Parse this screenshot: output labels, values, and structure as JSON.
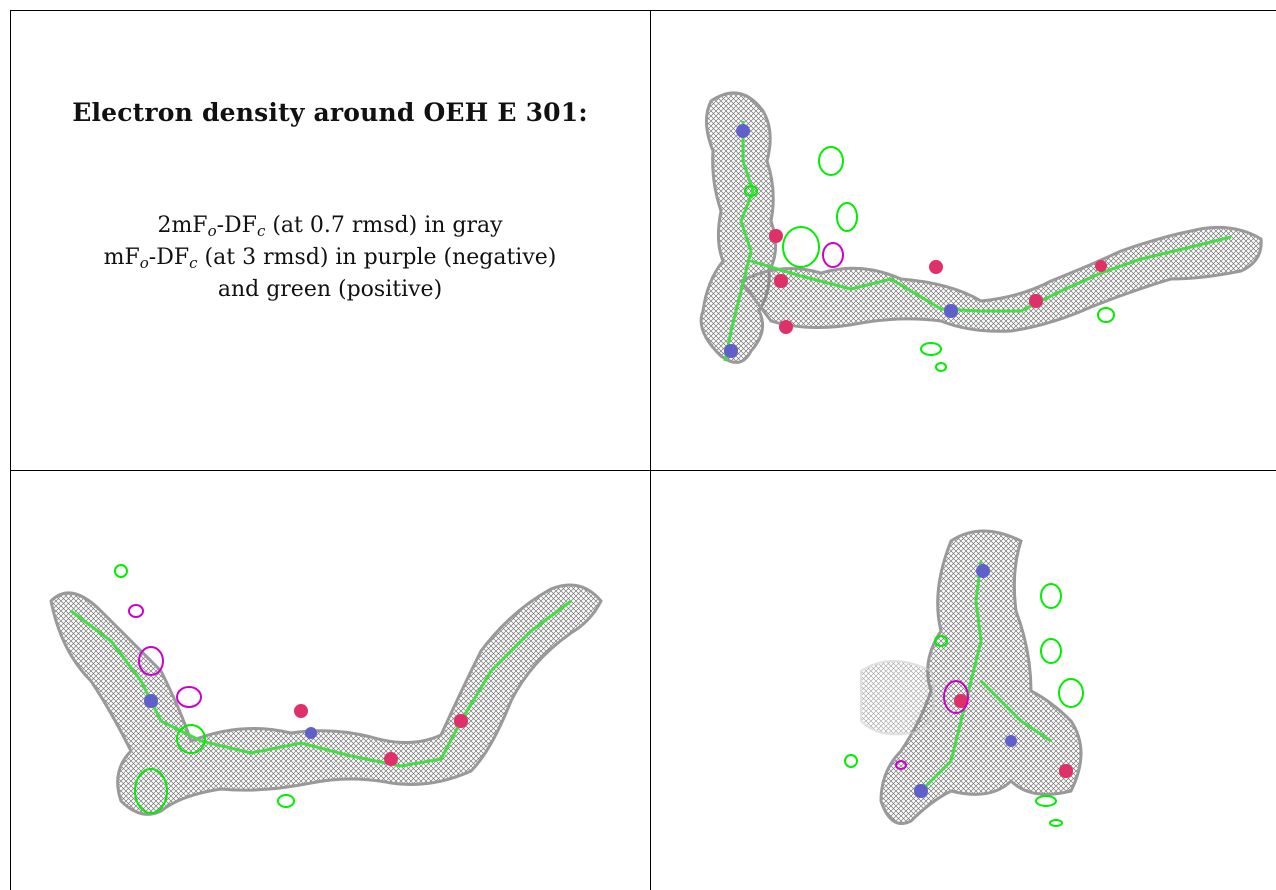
{
  "caption": {
    "title": "Electron density around OEH E 301:",
    "line1": {
      "pre": "2mF",
      "sub1": "o",
      "mid": "-DF",
      "sub2": "c",
      "post": " (at 0.7 rmsd) in gray"
    },
    "line2": {
      "pre": "mF",
      "sub1": "o",
      "mid": "-DF",
      "sub2": "c",
      "post": " (at 3 rmsd) in purple (negative)"
    },
    "line3": "and green (positive)"
  },
  "colors": {
    "map_2fofc": "#8a8a8a",
    "negative": "#cc00cc",
    "positive": "#00ee00",
    "carbon": "#44dd44",
    "nitrogen": "#6060cc",
    "oxygen": "#e0306a"
  },
  "panels": [
    {
      "name": "view-1",
      "icon": "ligand-density-map-icon"
    },
    {
      "name": "view-2",
      "icon": "ligand-density-map-icon"
    },
    {
      "name": "view-3",
      "icon": "ligand-density-map-icon"
    }
  ]
}
